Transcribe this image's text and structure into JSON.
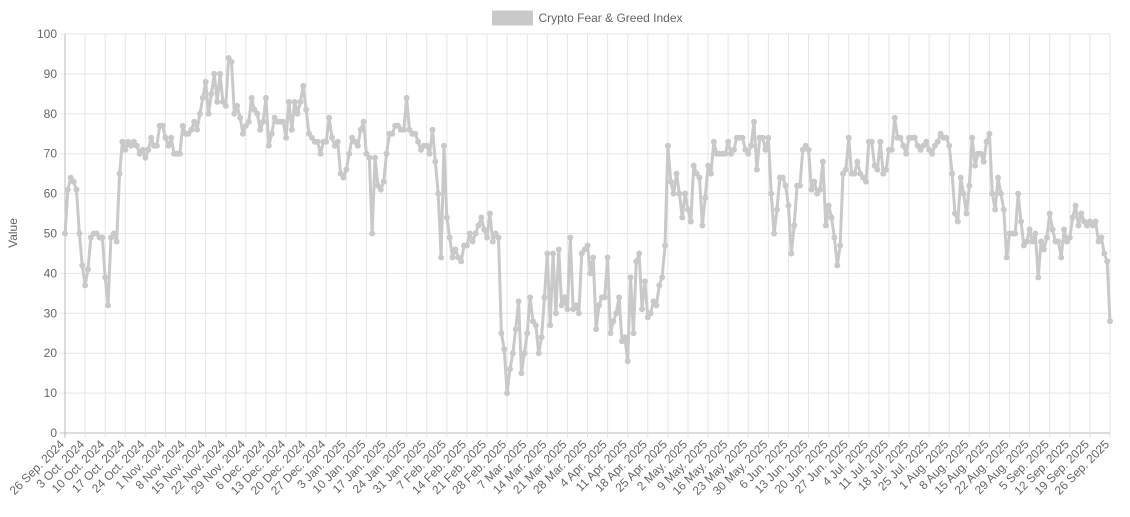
{
  "chart_data": {
    "type": "line",
    "y_label": "Value",
    "categories": [
      "26 Sep. 2024",
      null,
      null,
      null,
      null,
      null,
      null,
      "3 Oct. 2024",
      null,
      null,
      null,
      null,
      null,
      null,
      "10 Oct. 2024",
      null,
      null,
      null,
      null,
      null,
      null,
      "17 Oct. 2024",
      null,
      null,
      null,
      null,
      null,
      null,
      "24 Oct. 2024",
      null,
      null,
      null,
      null,
      null,
      null,
      "1 Nov. 2024",
      null,
      null,
      null,
      null,
      null,
      null,
      "8 Nov. 2024",
      null,
      null,
      null,
      null,
      null,
      null,
      "15 Nov. 2024",
      null,
      null,
      null,
      null,
      null,
      null,
      "22 Nov. 2024",
      null,
      null,
      null,
      null,
      null,
      null,
      "29 Nov. 2024",
      null,
      null,
      null,
      null,
      null,
      null,
      "6 Dec. 2024",
      null,
      null,
      null,
      null,
      null,
      null,
      "13 Dec. 2024",
      null,
      null,
      null,
      null,
      null,
      null,
      "20 Dec. 2024",
      null,
      null,
      null,
      null,
      null,
      null,
      "27 Dec. 2024",
      null,
      null,
      null,
      null,
      null,
      null,
      "3 Jan. 2025",
      null,
      null,
      null,
      null,
      null,
      null,
      "10 Jan. 2025",
      null,
      null,
      null,
      null,
      null,
      null,
      "17 Jan. 2025",
      null,
      null,
      null,
      null,
      null,
      null,
      "24 Jan. 2025",
      null,
      null,
      null,
      null,
      null,
      null,
      "31 Jan. 2025",
      null,
      null,
      null,
      null,
      null,
      null,
      "7 Feb. 2025",
      null,
      null,
      null,
      null,
      null,
      null,
      "14 Feb. 2025",
      null,
      null,
      null,
      null,
      null,
      null,
      "21 Feb. 2025",
      null,
      null,
      null,
      null,
      null,
      null,
      "28 Feb. 2025",
      null,
      null,
      null,
      null,
      null,
      null,
      "7 Mar. 2025",
      null,
      null,
      null,
      null,
      null,
      null,
      "14 Mar. 2025",
      null,
      null,
      null,
      null,
      null,
      null,
      "21 Mar. 2025",
      null,
      null,
      null,
      null,
      null,
      null,
      "28 Mar. 2025",
      null,
      null,
      null,
      null,
      null,
      null,
      "4 Apr. 2025",
      null,
      null,
      null,
      null,
      null,
      null,
      "11 Apr. 2025",
      null,
      null,
      null,
      null,
      null,
      null,
      "18 Apr. 2025",
      null,
      null,
      null,
      null,
      null,
      null,
      "25 Apr. 2025",
      null,
      null,
      null,
      null,
      null,
      null,
      "2 May. 2025",
      null,
      null,
      null,
      null,
      null,
      null,
      "9 May. 2025",
      null,
      null,
      null,
      null,
      null,
      null,
      "16 May. 2025",
      null,
      null,
      null,
      null,
      null,
      null,
      "23 May. 2025",
      null,
      null,
      null,
      null,
      null,
      null,
      "30 May. 2025",
      null,
      null,
      null,
      null,
      null,
      null,
      "6 Jun. 2025",
      null,
      null,
      null,
      null,
      null,
      null,
      "13 Jun. 2025",
      null,
      null,
      null,
      null,
      null,
      null,
      "20 Jun. 2025",
      null,
      null,
      null,
      null,
      null,
      null,
      "27 Jun. 2025",
      null,
      null,
      null,
      null,
      null,
      null,
      "4 Jul. 2025",
      null,
      null,
      null,
      null,
      null,
      null,
      "11 Jul. 2025",
      null,
      null,
      null,
      null,
      null,
      null,
      "18 Jul. 2025",
      null,
      null,
      null,
      null,
      null,
      null,
      "25 Jul. 2025",
      null,
      null,
      null,
      null,
      null,
      null,
      "1 Aug. 2025",
      null,
      null,
      null,
      null,
      null,
      null,
      "8 Aug. 2025",
      null,
      null,
      null,
      null,
      null,
      null,
      "15 Aug. 2025",
      null,
      null,
      null,
      null,
      null,
      null,
      "22 Aug. 2025",
      null,
      null,
      null,
      null,
      null,
      null,
      "29 Aug. 2025",
      null,
      null,
      null,
      null,
      null,
      null,
      "5 Sep. 2025",
      null,
      null,
      null,
      null,
      null,
      null,
      "12 Sep. 2025",
      null,
      null,
      null,
      null,
      null,
      null,
      "19 Sep. 2025",
      null,
      null,
      null,
      null,
      null,
      null,
      "26 Sep. 2025"
    ],
    "series": [
      {
        "name": "Crypto Fear & Greed Index",
        "color": "#c9c9c9",
        "values": [
          50,
          61,
          64,
          63,
          61,
          50,
          42,
          37,
          41,
          49,
          50,
          50,
          49,
          49,
          39,
          32,
          49,
          50,
          48,
          65,
          73,
          71,
          73,
          72,
          73,
          72,
          70,
          71,
          69,
          71,
          74,
          72,
          72,
          77,
          77,
          74,
          72,
          74,
          70,
          70,
          70,
          77,
          75,
          75,
          76,
          78,
          76,
          80,
          84,
          88,
          80,
          85,
          90,
          83,
          90,
          83,
          82,
          94,
          93,
          80,
          82,
          79,
          75,
          77,
          78,
          84,
          81,
          80,
          76,
          78,
          84,
          72,
          75,
          79,
          78,
          78,
          78,
          74,
          83,
          76,
          83,
          80,
          83,
          87,
          81,
          75,
          74,
          73,
          73,
          70,
          73,
          73,
          79,
          74,
          72,
          73,
          65,
          64,
          66,
          70,
          74,
          73,
          72,
          76,
          78,
          70,
          69,
          50,
          69,
          62,
          61,
          63,
          70,
          75,
          75,
          77,
          77,
          76,
          76,
          84,
          76,
          75,
          75,
          73,
          71,
          72,
          72,
          70,
          76,
          68,
          60,
          44,
          72,
          54,
          49,
          44,
          46,
          44,
          43,
          47,
          47,
          50,
          48,
          50,
          52,
          54,
          51,
          49,
          55,
          48,
          50,
          49,
          25,
          21,
          10,
          16,
          20,
          26,
          33,
          15,
          20,
          25,
          34,
          28,
          27,
          20,
          24,
          34,
          45,
          27,
          45,
          30,
          46,
          32,
          34,
          31,
          49,
          31,
          32,
          30,
          45,
          46,
          47,
          40,
          44,
          26,
          32,
          34,
          34,
          44,
          25,
          28,
          30,
          34,
          23,
          24,
          18,
          39,
          25,
          43,
          45,
          31,
          38,
          29,
          30,
          33,
          32,
          37,
          39,
          47,
          72,
          63,
          60,
          65,
          60,
          54,
          60,
          56,
          53,
          67,
          65,
          64,
          52,
          59,
          67,
          65,
          73,
          70,
          70,
          70,
          70,
          73,
          70,
          71,
          74,
          74,
          74,
          71,
          70,
          72,
          78,
          66,
          74,
          74,
          71,
          74,
          60,
          50,
          56,
          64,
          64,
          62,
          57,
          45,
          52,
          62,
          62,
          71,
          72,
          71,
          61,
          63,
          60,
          61,
          68,
          52,
          57,
          54,
          49,
          42,
          47,
          65,
          66,
          74,
          65,
          65,
          68,
          65,
          64,
          63,
          73,
          73,
          67,
          66,
          73,
          65,
          66,
          71,
          71,
          79,
          74,
          74,
          72,
          70,
          74,
          74,
          74,
          72,
          71,
          72,
          73,
          71,
          70,
          72,
          73,
          75,
          74,
          74,
          72,
          65,
          55,
          53,
          64,
          60,
          55,
          62,
          74,
          67,
          70,
          70,
          68,
          73,
          75,
          60,
          56,
          64,
          60,
          56,
          44,
          50,
          50,
          50,
          60,
          53,
          47,
          48,
          51,
          48,
          50,
          39,
          48,
          46,
          49,
          55,
          51,
          48,
          48,
          44,
          51,
          48,
          49,
          54,
          57,
          52,
          55,
          53,
          52,
          53,
          52,
          53,
          48,
          49,
          45,
          43,
          28
        ]
      }
    ],
    "ylim": [
      0,
      100
    ],
    "yticks": [
      0,
      10,
      20,
      30,
      40,
      50,
      60,
      70,
      80,
      90,
      100
    ],
    "grid": true,
    "legend": "top"
  }
}
